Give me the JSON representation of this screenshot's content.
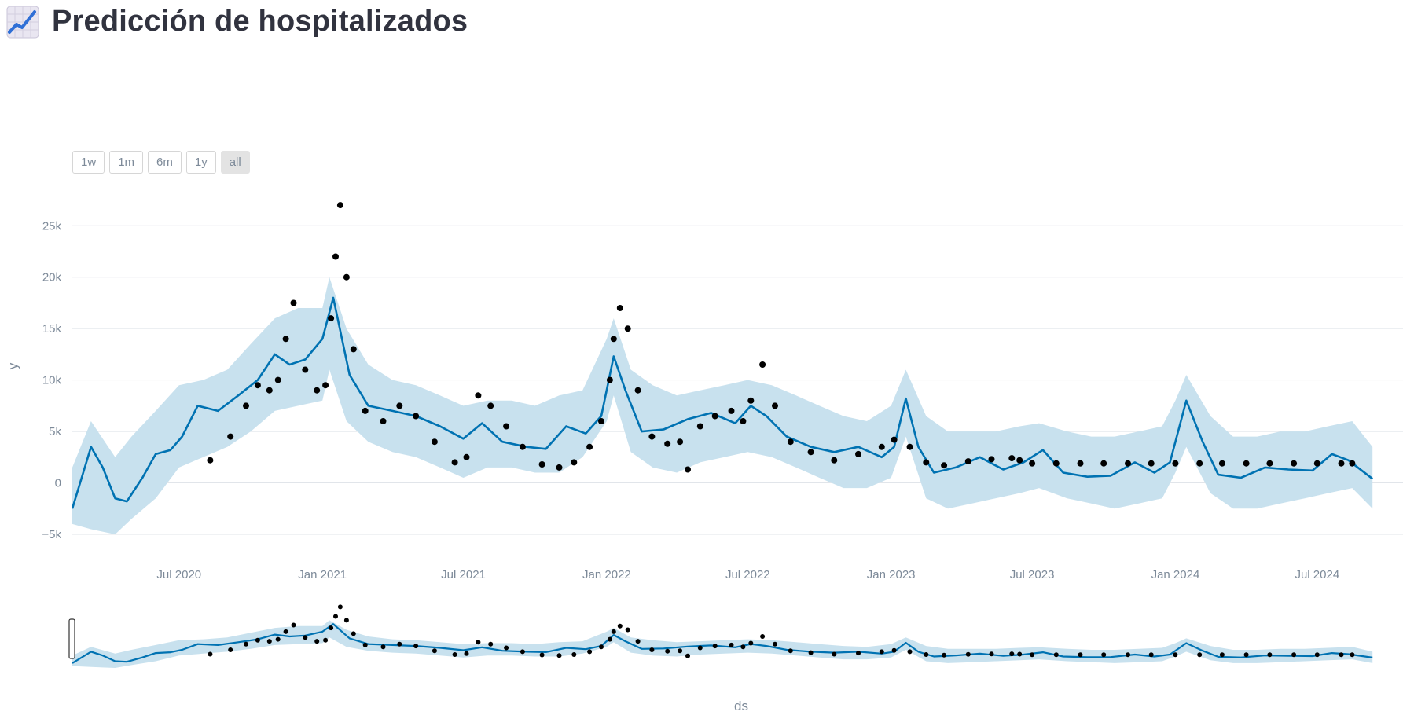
{
  "page": {
    "title": "Predicción de hospitalizados",
    "icon": "chart-increasing-icon"
  },
  "range_buttons": [
    "1w",
    "1m",
    "6m",
    "1y",
    "all"
  ],
  "range_active": "all",
  "colors": {
    "forecast_line": "#0072b2",
    "uncertainty_band": "#c8e1ee",
    "observed_points": "#000000",
    "grid": "#e1e5ea",
    "tick_text": "#7d8a99"
  },
  "chart_data": {
    "type": "line",
    "xlabel": "ds",
    "ylabel": "y",
    "x_range": [
      "2020-02-15",
      "2024-09-15"
    ],
    "ylim": [
      -5000,
      28000
    ],
    "x_ticks": [
      "Jul 2020",
      "Jan 2021",
      "Jul 2021",
      "Jan 2022",
      "Jul 2022",
      "Jan 2023",
      "Jul 2023",
      "Jan 2024",
      "Jul 2024"
    ],
    "y_ticks": [
      -5000,
      0,
      5000,
      10000,
      15000,
      20000,
      25000
    ],
    "y_tick_labels": [
      "−5k",
      "0",
      "5k",
      "10k",
      "15k",
      "20k",
      "25k"
    ],
    "grid": true,
    "range_slider": true,
    "series": [
      {
        "type": "band",
        "note_role": "uncertainty interval",
        "x": [
          "2020-02-15",
          "2020-03-10",
          "2020-04-10",
          "2020-05-01",
          "2020-06-01",
          "2020-07-01",
          "2020-08-01",
          "2020-09-01",
          "2020-10-01",
          "2020-11-01",
          "2020-12-01",
          "2021-01-01",
          "2021-01-10",
          "2021-02-01",
          "2021-03-01",
          "2021-04-01",
          "2021-05-01",
          "2021-06-01",
          "2021-07-01",
          "2021-08-01",
          "2021-09-01",
          "2021-10-01",
          "2021-11-01",
          "2021-12-01",
          "2022-01-01",
          "2022-01-10",
          "2022-02-01",
          "2022-03-01",
          "2022-04-01",
          "2022-05-01",
          "2022-06-01",
          "2022-07-01",
          "2022-08-01",
          "2022-09-01",
          "2022-10-01",
          "2022-11-01",
          "2022-12-01",
          "2023-01-01",
          "2023-01-20",
          "2023-02-15",
          "2023-03-15",
          "2023-04-15",
          "2023-05-15",
          "2023-06-15",
          "2023-07-10",
          "2023-08-15",
          "2023-09-15",
          "2023-10-15",
          "2023-11-15",
          "2023-12-15",
          "2024-01-01",
          "2024-01-15",
          "2024-02-15",
          "2024-03-15",
          "2024-04-15",
          "2024-05-15",
          "2024-06-15",
          "2024-07-15",
          "2024-08-15",
          "2024-09-10"
        ],
        "y_upper": [
          1500,
          6000,
          2500,
          4500,
          7000,
          9500,
          10000,
          11000,
          13500,
          16000,
          17000,
          17000,
          20000,
          15000,
          11500,
          10000,
          9500,
          8500,
          7500,
          8000,
          8000,
          7500,
          8500,
          9000,
          14000,
          16000,
          11000,
          9500,
          8500,
          9000,
          9500,
          10000,
          9500,
          8500,
          7500,
          6500,
          6000,
          7500,
          11000,
          6500,
          5000,
          5000,
          5000,
          5500,
          5800,
          5000,
          4500,
          4500,
          5000,
          5500,
          8000,
          10500,
          6500,
          4500,
          4500,
          5000,
          5000,
          5500,
          6000,
          3500
        ],
        "y_lower": [
          -4000,
          -4500,
          -5000,
          -3500,
          -1500,
          1500,
          2500,
          3500,
          5000,
          7000,
          7500,
          8000,
          11000,
          6000,
          4000,
          3000,
          2500,
          1500,
          500,
          1500,
          1500,
          1000,
          1000,
          2500,
          6000,
          8500,
          3000,
          1500,
          1000,
          2000,
          2500,
          3000,
          2500,
          1500,
          500,
          -500,
          -500,
          500,
          4500,
          -1500,
          -2500,
          -2000,
          -1500,
          -1000,
          -500,
          -1500,
          -2000,
          -2500,
          -2000,
          -1500,
          1000,
          3500,
          -1000,
          -2500,
          -2500,
          -2000,
          -1500,
          -1000,
          -500,
          -2500
        ]
      },
      {
        "type": "line",
        "note_role": "forecast",
        "x": [
          "2020-02-15",
          "2020-03-10",
          "2020-03-25",
          "2020-04-10",
          "2020-04-25",
          "2020-05-15",
          "2020-06-01",
          "2020-06-20",
          "2020-07-05",
          "2020-07-25",
          "2020-08-20",
          "2020-09-15",
          "2020-10-10",
          "2020-11-01",
          "2020-11-20",
          "2020-12-10",
          "2021-01-01",
          "2021-01-15",
          "2021-02-05",
          "2021-03-01",
          "2021-04-01",
          "2021-05-01",
          "2021-06-01",
          "2021-07-01",
          "2021-07-25",
          "2021-08-20",
          "2021-09-20",
          "2021-10-15",
          "2021-11-10",
          "2021-12-05",
          "2021-12-25",
          "2022-01-10",
          "2022-01-25",
          "2022-02-15",
          "2022-03-15",
          "2022-04-15",
          "2022-05-15",
          "2022-06-15",
          "2022-07-05",
          "2022-07-25",
          "2022-08-20",
          "2022-09-20",
          "2022-10-20",
          "2022-11-20",
          "2022-12-20",
          "2023-01-05",
          "2023-01-20",
          "2023-02-05",
          "2023-02-25",
          "2023-03-25",
          "2023-04-25",
          "2023-05-25",
          "2023-06-20",
          "2023-07-15",
          "2023-08-10",
          "2023-09-10",
          "2023-10-10",
          "2023-11-10",
          "2023-12-05",
          "2023-12-25",
          "2024-01-15",
          "2024-02-05",
          "2024-02-25",
          "2024-03-25",
          "2024-04-25",
          "2024-05-25",
          "2024-06-25",
          "2024-07-20",
          "2024-08-10",
          "2024-09-10"
        ],
        "y": [
          -2500,
          3500,
          1500,
          -1500,
          -1800,
          500,
          2800,
          3200,
          4500,
          7500,
          7000,
          8500,
          10000,
          12500,
          11500,
          12000,
          14000,
          18000,
          10500,
          7500,
          7000,
          6500,
          5500,
          4300,
          5800,
          4000,
          3500,
          3300,
          5500,
          4800,
          6500,
          12300,
          9000,
          5000,
          5200,
          6200,
          6800,
          5800,
          7500,
          6500,
          4500,
          3500,
          3000,
          3500,
          2500,
          3500,
          8200,
          3500,
          1000,
          1500,
          2500,
          1300,
          2000,
          3200,
          1000,
          600,
          700,
          2000,
          1000,
          2000,
          8000,
          4000,
          800,
          500,
          1500,
          1300,
          1200,
          2800,
          2200,
          400
        ]
      },
      {
        "type": "scatter",
        "note_role": "observed",
        "x": [
          "2020-08-10",
          "2020-09-05",
          "2020-09-25",
          "2020-10-10",
          "2020-10-25",
          "2020-11-05",
          "2020-11-15",
          "2020-11-25",
          "2020-12-10",
          "2020-12-25",
          "2021-01-05",
          "2021-01-12",
          "2021-01-18",
          "2021-01-24",
          "2021-02-01",
          "2021-02-10",
          "2021-02-25",
          "2021-03-20",
          "2021-04-10",
          "2021-05-01",
          "2021-05-25",
          "2021-06-20",
          "2021-07-05",
          "2021-07-20",
          "2021-08-05",
          "2021-08-25",
          "2021-09-15",
          "2021-10-10",
          "2021-11-01",
          "2021-11-20",
          "2021-12-10",
          "2021-12-25",
          "2022-01-05",
          "2022-01-10",
          "2022-01-18",
          "2022-01-28",
          "2022-02-10",
          "2022-02-28",
          "2022-03-20",
          "2022-04-05",
          "2022-04-15",
          "2022-05-01",
          "2022-05-20",
          "2022-06-10",
          "2022-06-25",
          "2022-07-05",
          "2022-07-20",
          "2022-08-05",
          "2022-08-25",
          "2022-09-20",
          "2022-10-20",
          "2022-11-20",
          "2022-12-20",
          "2023-01-05",
          "2023-01-25",
          "2023-02-15",
          "2023-03-10",
          "2023-04-10",
          "2023-05-10",
          "2023-06-05",
          "2023-06-15",
          "2023-07-01",
          "2023-08-01",
          "2023-09-01",
          "2023-10-01",
          "2023-11-01",
          "2023-12-01",
          "2024-01-01",
          "2024-02-01",
          "2024-03-01",
          "2024-04-01",
          "2024-05-01",
          "2024-06-01",
          "2024-07-01",
          "2024-08-01",
          "2024-08-15"
        ],
        "y": [
          2200,
          4500,
          7500,
          9500,
          9000,
          10000,
          14000,
          17500,
          11000,
          9000,
          9500,
          16000,
          22000,
          27000,
          20000,
          13000,
          7000,
          6000,
          7500,
          6500,
          4000,
          2000,
          2500,
          8500,
          7500,
          5500,
          3500,
          1800,
          1500,
          2000,
          3500,
          6000,
          10000,
          14000,
          17000,
          15000,
          9000,
          4500,
          3800,
          4000,
          1300,
          5500,
          6500,
          7000,
          6000,
          8000,
          11500,
          7500,
          4000,
          3000,
          2200,
          2800,
          3500,
          4200,
          3500,
          2000,
          1700,
          2100,
          2300,
          2400,
          2200,
          1900,
          1900,
          1900,
          1900,
          1900,
          1900,
          1900,
          1900,
          1900,
          1900,
          1900,
          1900,
          1900,
          1900,
          1900
        ]
      }
    ]
  }
}
